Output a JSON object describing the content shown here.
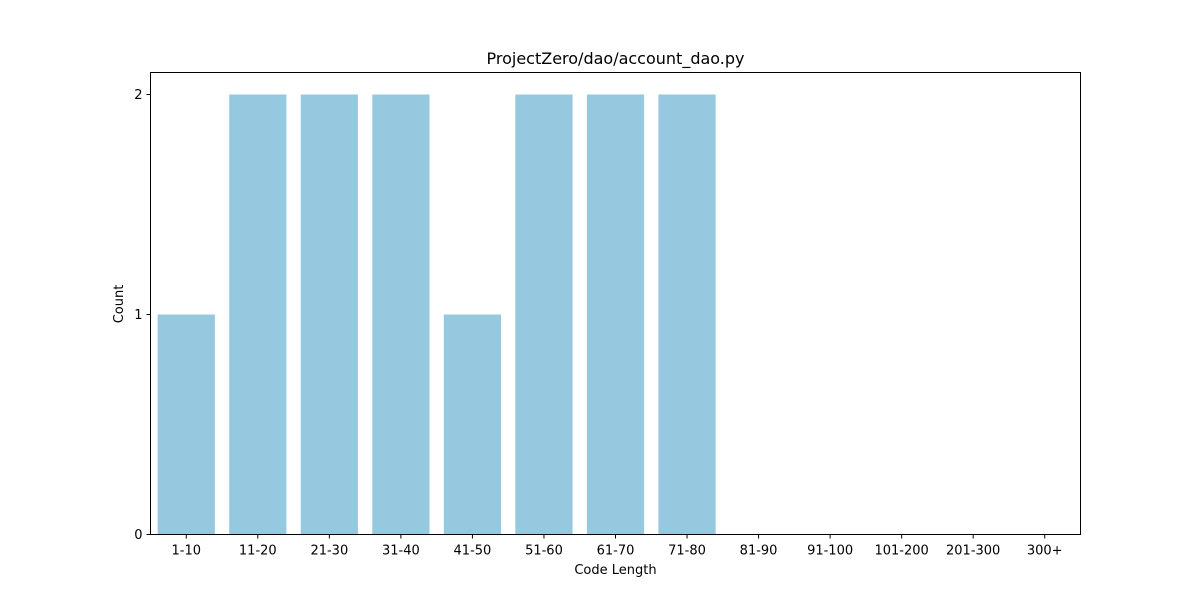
{
  "chart_data": {
    "type": "bar",
    "title": "ProjectZero/dao/account_dao.py",
    "xlabel": "Code Length",
    "ylabel": "Count",
    "categories": [
      "1-10",
      "11-20",
      "21-30",
      "31-40",
      "41-50",
      "51-60",
      "61-70",
      "71-80",
      "81-90",
      "91-100",
      "101-200",
      "201-300",
      "300+"
    ],
    "values": [
      1,
      2,
      2,
      2,
      1,
      2,
      2,
      2,
      0,
      0,
      0,
      0,
      0
    ],
    "ylim": [
      0,
      2.1
    ],
    "yticks": [
      0,
      1,
      2
    ],
    "bar_color": "#96c9df",
    "grid": false,
    "legend": false
  }
}
